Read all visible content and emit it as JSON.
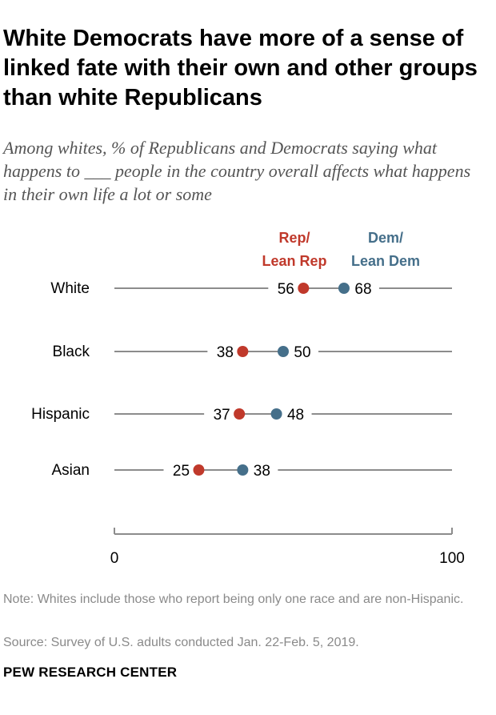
{
  "header": {
    "title": "White Democrats have more of a sense of linked fate with their own and other groups than white Republicans",
    "subtitle": "Among whites, % of Republicans and Democrats saying what happens to ___ people in the country overall affects what happens in their own life a lot or some"
  },
  "chart_data": {
    "type": "dot",
    "categories": [
      "White",
      "Black",
      "Hispanic",
      "Asian"
    ],
    "series": [
      {
        "name": "Rep/\nLean Rep",
        "color": "#c0392b",
        "values": [
          56,
          38,
          37,
          25
        ]
      },
      {
        "name": "Dem/\nLean Dem",
        "color": "#456f8a",
        "values": [
          68,
          50,
          48,
          38
        ]
      }
    ],
    "x_ticks": [
      "0",
      "100"
    ],
    "xlim": [
      0,
      100
    ],
    "grid": false,
    "legend_placement": "top"
  },
  "footer": {
    "note": "Note: Whites include those who report being only one race and are non-Hispanic.",
    "source": "Source: Survey of U.S. adults conducted Jan. 22-Feb. 5, 2019.",
    "brand": "PEW RESEARCH CENTER"
  }
}
